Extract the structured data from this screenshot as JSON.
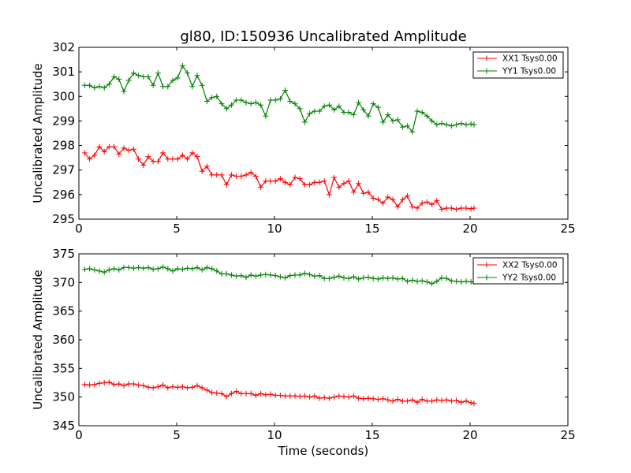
{
  "chart_data": [
    {
      "type": "line",
      "title": "gl80, ID:150936 Uncalibrated Amplitude",
      "xlabel": "",
      "ylabel": "Uncalibrated Amplitude",
      "xlim": [
        0,
        25
      ],
      "ylim": [
        295,
        302
      ],
      "xticks": [
        "0",
        "5",
        "10",
        "15",
        "20",
        "25"
      ],
      "yticks": [
        "295",
        "296",
        "297",
        "298",
        "299",
        "300",
        "301",
        "302"
      ],
      "legend_position": "top-right",
      "x": [
        0.3,
        0.55,
        0.8,
        1.05,
        1.3,
        1.55,
        1.8,
        2.05,
        2.3,
        2.55,
        2.8,
        3.05,
        3.3,
        3.55,
        3.8,
        4.05,
        4.3,
        4.55,
        4.8,
        5.05,
        5.3,
        5.55,
        5.8,
        6.05,
        6.3,
        6.55,
        6.8,
        7.05,
        7.3,
        7.55,
        7.8,
        8.05,
        8.3,
        8.55,
        8.8,
        9.05,
        9.3,
        9.55,
        9.8,
        10.05,
        10.3,
        10.55,
        10.8,
        11.05,
        11.3,
        11.55,
        11.8,
        12.05,
        12.3,
        12.55,
        12.8,
        13.05,
        13.3,
        13.55,
        13.8,
        14.05,
        14.3,
        14.55,
        14.8,
        15.05,
        15.3,
        15.55,
        15.8,
        16.05,
        16.3,
        16.55,
        16.8,
        17.05,
        17.3,
        17.55,
        17.8,
        18.05,
        18.3,
        18.55,
        18.8,
        19.05,
        19.3,
        19.55,
        19.8,
        20.05,
        20.2
      ],
      "series": [
        {
          "name": "XX1 Tsys0.00",
          "color": "#ff0000",
          "values": [
            297.7,
            297.45,
            297.6,
            297.95,
            297.75,
            297.95,
            297.95,
            297.65,
            297.9,
            297.8,
            297.85,
            297.45,
            297.2,
            297.55,
            297.35,
            297.35,
            297.7,
            297.45,
            297.45,
            297.45,
            297.6,
            297.45,
            297.7,
            297.55,
            296.95,
            297.15,
            296.8,
            296.8,
            296.8,
            296.4,
            296.8,
            296.75,
            296.75,
            296.8,
            296.9,
            296.75,
            296.3,
            296.55,
            296.55,
            296.55,
            296.65,
            296.5,
            296.4,
            296.7,
            296.65,
            296.4,
            296.4,
            296.5,
            296.5,
            296.55,
            296.0,
            296.7,
            296.3,
            296.45,
            296.55,
            296.1,
            296.45,
            296.05,
            296.1,
            295.85,
            295.8,
            295.65,
            295.9,
            295.8,
            295.5,
            295.8,
            295.95,
            295.5,
            295.45,
            295.65,
            295.7,
            295.6,
            295.75,
            295.4,
            295.45,
            295.45,
            295.4,
            295.45,
            295.45,
            295.42,
            295.45
          ]
        },
        {
          "name": "YY1 Tsys0.00",
          "color": "#008000",
          "values": [
            300.45,
            300.45,
            300.35,
            300.4,
            300.35,
            300.5,
            300.8,
            300.7,
            300.2,
            300.65,
            300.95,
            300.85,
            300.8,
            300.8,
            300.45,
            300.95,
            300.4,
            300.4,
            300.65,
            300.75,
            301.25,
            300.95,
            300.4,
            300.85,
            300.45,
            299.8,
            299.95,
            300.0,
            299.7,
            299.5,
            299.65,
            299.85,
            299.85,
            299.75,
            299.7,
            299.75,
            299.65,
            299.2,
            299.85,
            299.85,
            299.9,
            300.25,
            299.8,
            299.7,
            299.5,
            298.95,
            299.3,
            299.4,
            299.4,
            299.6,
            299.65,
            299.45,
            299.6,
            299.35,
            299.35,
            299.25,
            299.75,
            299.45,
            299.2,
            299.7,
            299.55,
            298.95,
            299.25,
            299.0,
            299.05,
            298.75,
            298.8,
            298.55,
            299.4,
            299.35,
            299.2,
            299.0,
            298.85,
            298.9,
            298.85,
            298.8,
            298.85,
            298.9,
            298.85,
            298.88,
            298.85
          ]
        }
      ]
    },
    {
      "type": "line",
      "title": "",
      "xlabel": "Time (seconds)",
      "ylabel": "Uncalibrated Amplitude",
      "xlim": [
        0,
        25
      ],
      "ylim": [
        345,
        375
      ],
      "xticks": [
        "0",
        "5",
        "10",
        "15",
        "20",
        "25"
      ],
      "yticks": [
        "345",
        "350",
        "355",
        "360",
        "365",
        "370",
        "375"
      ],
      "legend_position": "top-right",
      "x": [
        0.3,
        0.55,
        0.8,
        1.05,
        1.3,
        1.55,
        1.8,
        2.05,
        2.3,
        2.55,
        2.8,
        3.05,
        3.3,
        3.55,
        3.8,
        4.05,
        4.3,
        4.55,
        4.8,
        5.05,
        5.3,
        5.55,
        5.8,
        6.05,
        6.3,
        6.55,
        6.8,
        7.05,
        7.3,
        7.55,
        7.8,
        8.05,
        8.3,
        8.55,
        8.8,
        9.05,
        9.3,
        9.55,
        9.8,
        10.05,
        10.3,
        10.55,
        10.8,
        11.05,
        11.3,
        11.55,
        11.8,
        12.05,
        12.3,
        12.55,
        12.8,
        13.05,
        13.3,
        13.55,
        13.8,
        14.05,
        14.3,
        14.55,
        14.8,
        15.05,
        15.3,
        15.55,
        15.8,
        16.05,
        16.3,
        16.55,
        16.8,
        17.05,
        17.3,
        17.55,
        17.8,
        18.05,
        18.3,
        18.55,
        18.8,
        19.05,
        19.3,
        19.55,
        19.8,
        20.05,
        20.2
      ],
      "series": [
        {
          "name": "XX2 Tsys0.00",
          "color": "#ff0000",
          "values": [
            352.2,
            352.1,
            352.2,
            352.4,
            352.5,
            352.6,
            352.2,
            352.3,
            352.0,
            352.3,
            352.3,
            352.1,
            352.0,
            351.7,
            351.6,
            351.8,
            352.1,
            351.6,
            351.8,
            351.7,
            351.8,
            351.6,
            351.7,
            352.0,
            351.6,
            351.2,
            350.8,
            350.7,
            350.6,
            350.1,
            350.6,
            351.0,
            350.6,
            350.6,
            350.6,
            350.3,
            350.6,
            350.4,
            350.5,
            350.3,
            350.3,
            350.2,
            350.2,
            350.2,
            350.1,
            350.2,
            350.0,
            350.2,
            349.8,
            349.9,
            349.8,
            350.0,
            350.2,
            350.1,
            350.0,
            350.2,
            349.8,
            349.7,
            349.8,
            349.7,
            349.6,
            349.7,
            349.5,
            349.3,
            349.6,
            349.3,
            349.3,
            349.5,
            349.1,
            349.6,
            349.3,
            349.3,
            349.5,
            349.4,
            349.5,
            349.3,
            349.4,
            349.1,
            349.3,
            349.0,
            348.9
          ]
        },
        {
          "name": "YY2 Tsys0.00",
          "color": "#008000",
          "values": [
            372.3,
            372.4,
            372.2,
            372.0,
            371.8,
            372.2,
            372.4,
            372.2,
            372.6,
            372.6,
            372.5,
            372.6,
            372.5,
            372.6,
            372.3,
            372.4,
            372.7,
            372.4,
            372.0,
            372.4,
            372.3,
            372.5,
            372.4,
            372.6,
            372.2,
            372.6,
            372.4,
            372.0,
            371.5,
            371.5,
            371.3,
            371.1,
            371.2,
            370.9,
            371.3,
            371.1,
            371.3,
            371.4,
            371.3,
            371.2,
            371.0,
            370.8,
            371.2,
            371.3,
            371.3,
            371.6,
            371.4,
            371.1,
            371.2,
            370.7,
            370.7,
            370.9,
            371.1,
            370.8,
            370.7,
            371.0,
            370.6,
            370.8,
            370.9,
            370.7,
            370.6,
            370.8,
            370.7,
            370.8,
            370.6,
            370.7,
            370.2,
            370.4,
            370.2,
            370.3,
            370.1,
            369.8,
            370.2,
            370.8,
            370.7,
            370.3,
            370.2,
            370.1,
            370.2,
            370.1,
            370.1
          ]
        }
      ]
    }
  ]
}
